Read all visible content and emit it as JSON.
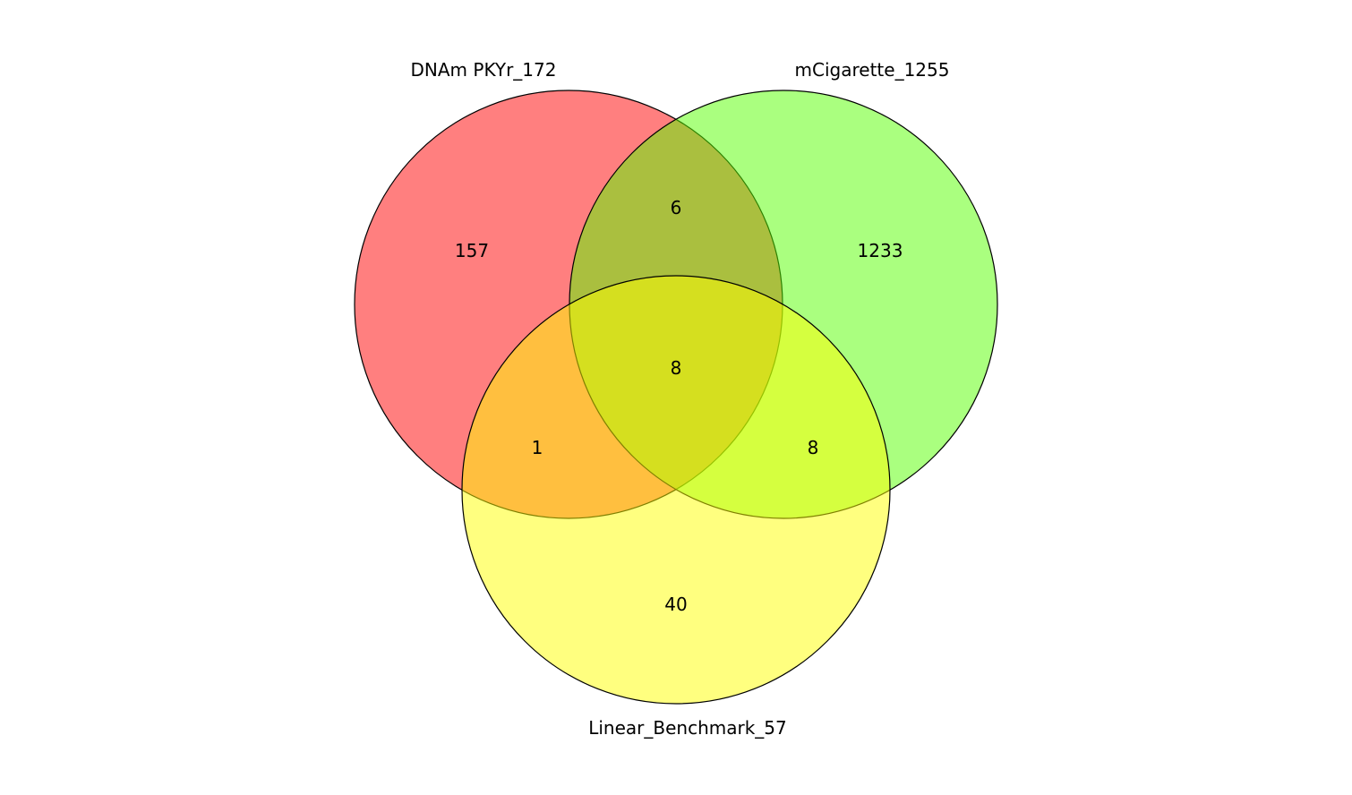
{
  "diagram": {
    "type": "venn3",
    "sets": [
      {
        "key": "A",
        "label": "DNAm PKYr_172",
        "color": "#ff0000"
      },
      {
        "key": "B",
        "label": "mCigarette_1255",
        "color": "#55ff00"
      },
      {
        "key": "C",
        "label": "Linear_Benchmark_57",
        "color": "#ffff00"
      }
    ],
    "regions": {
      "A_only": "157",
      "B_only": "1233",
      "C_only": "40",
      "AB_only": "6",
      "AC_only": "1",
      "BC_only": "8",
      "ABC": "8"
    },
    "fill_opacity": 0.5,
    "stroke_color": "#000000"
  }
}
